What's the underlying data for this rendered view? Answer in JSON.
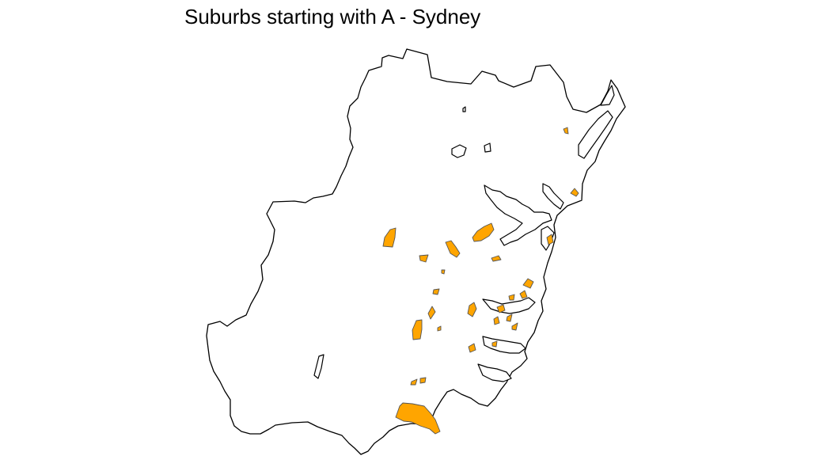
{
  "map": {
    "title": "Suburbs starting with A - Sydney",
    "highlight_color": "#FFA500",
    "outline_color": "#000000",
    "background_color": "#FFFFFF"
  }
}
